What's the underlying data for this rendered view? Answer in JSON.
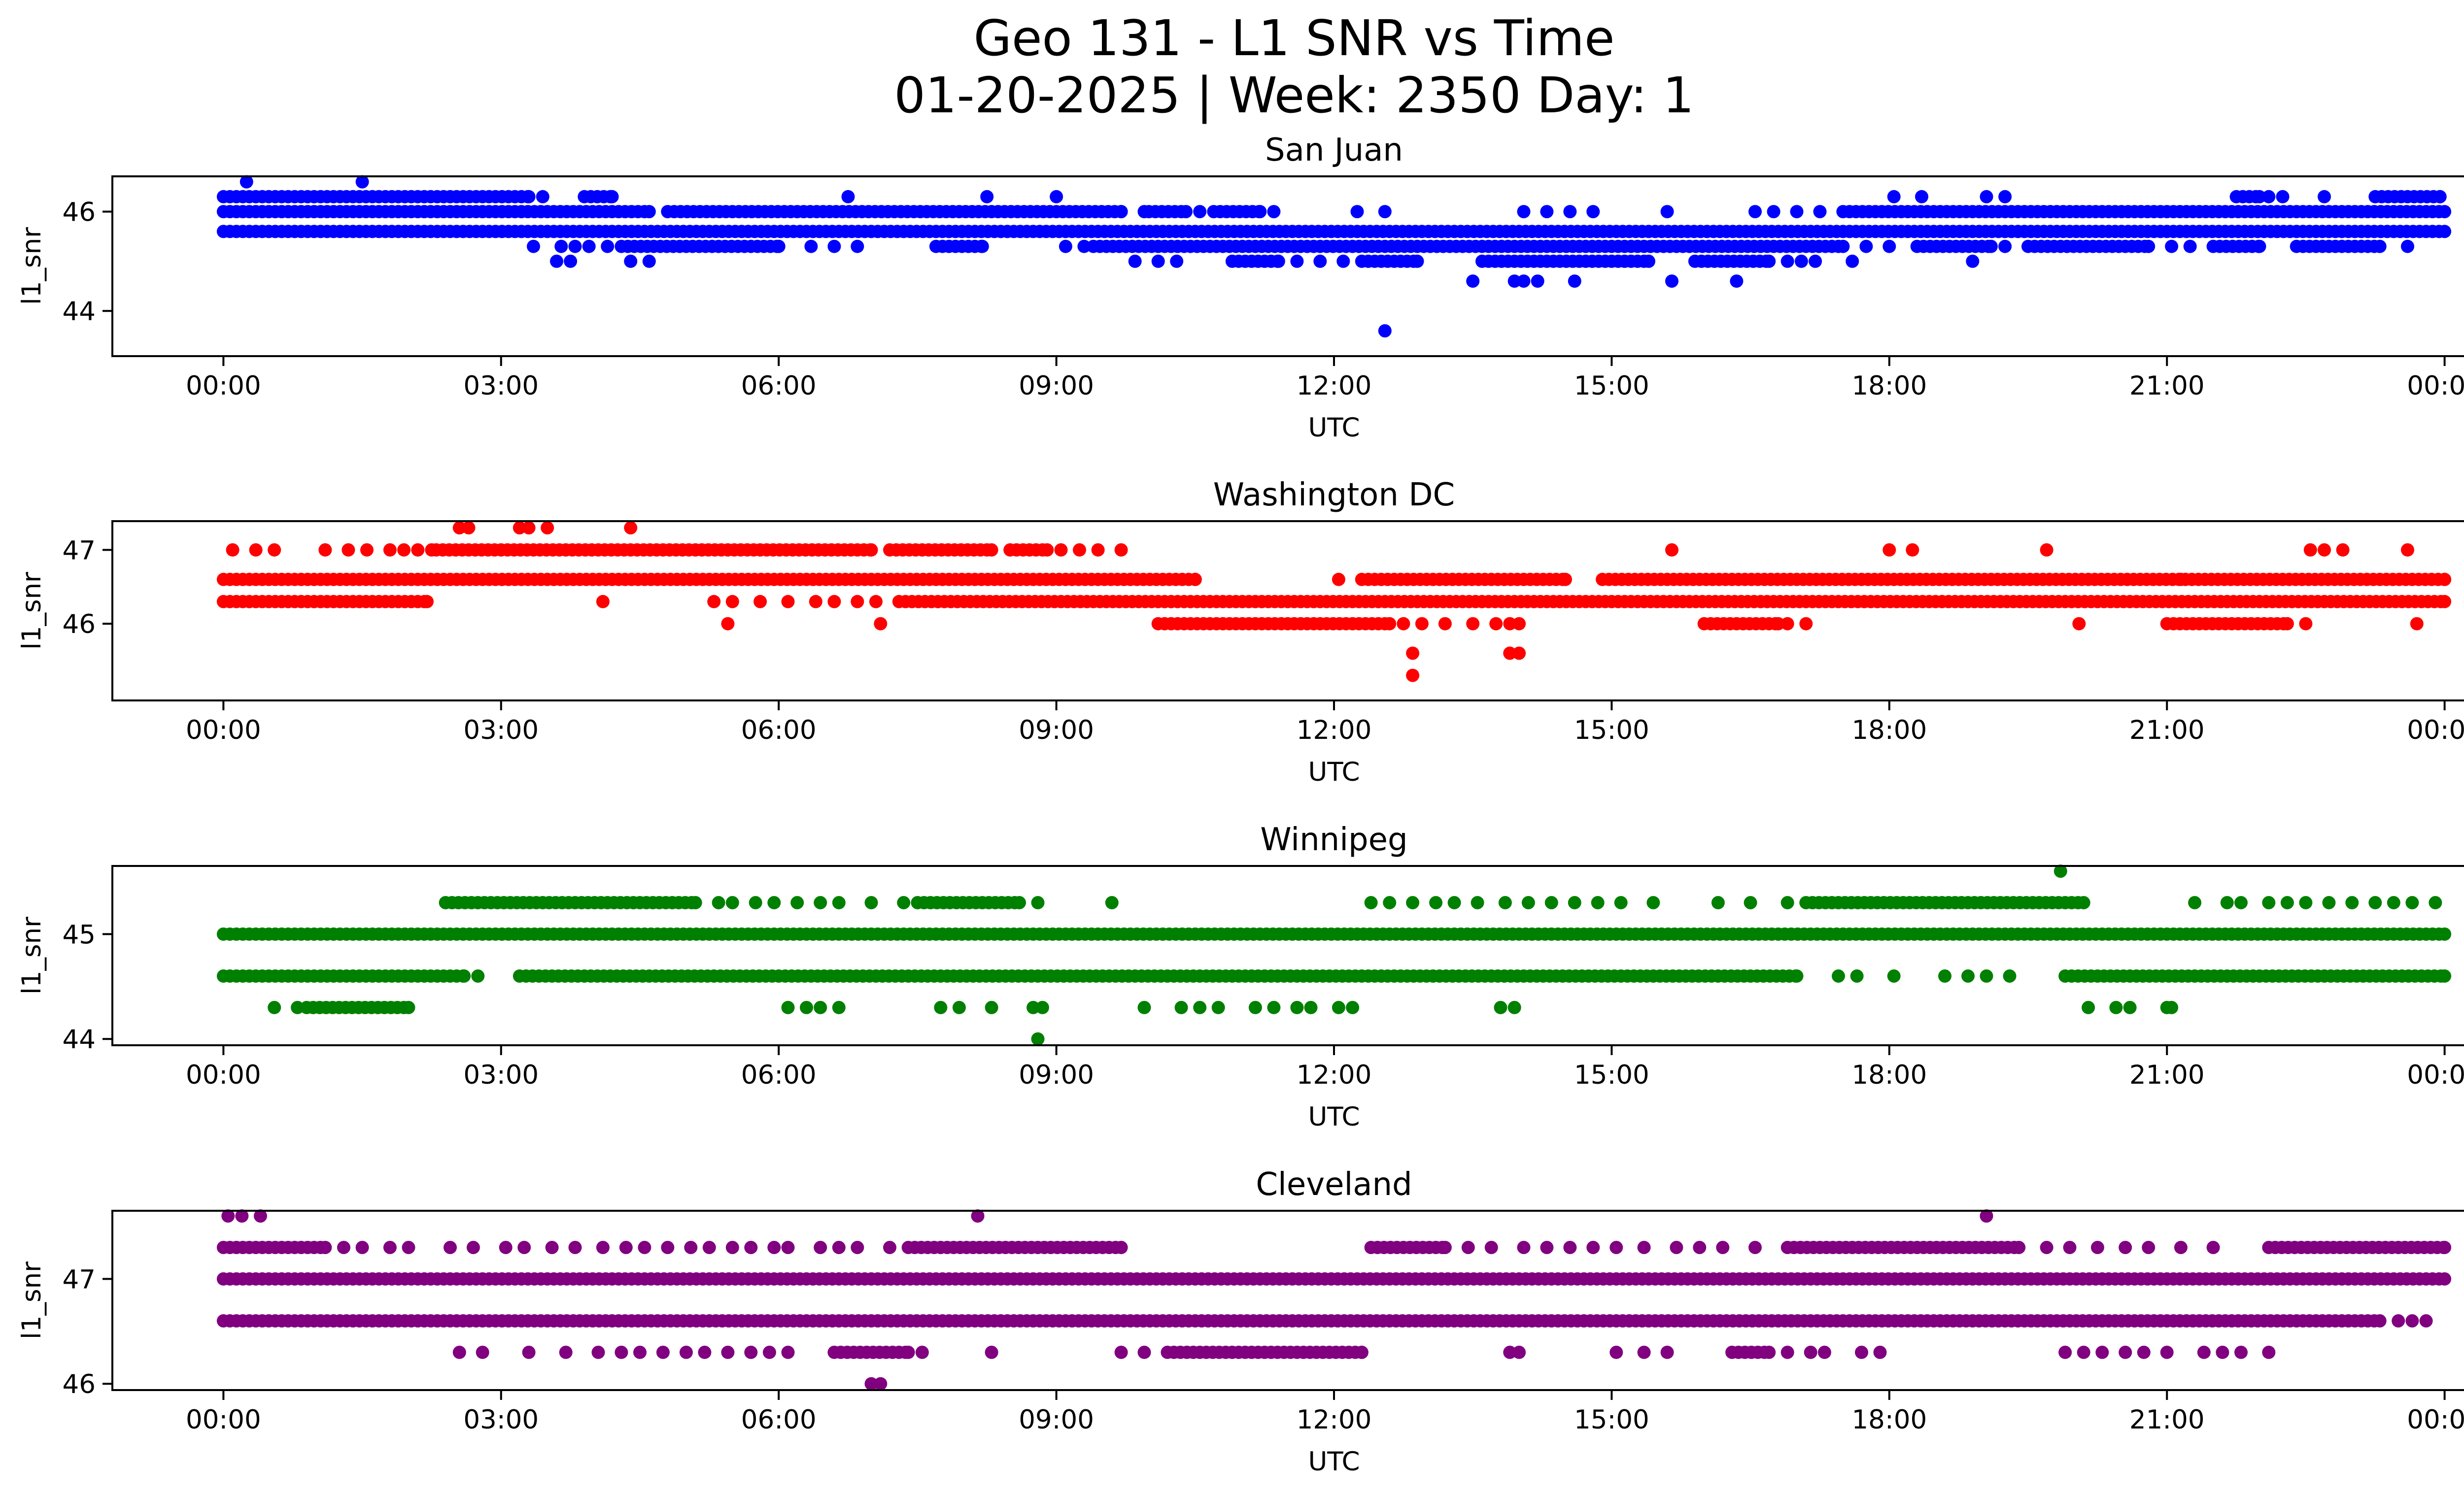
{
  "figure": {
    "title_line1": "Geo 131 - L1 SNR vs Time",
    "title_line2": "01-20-2025 | Week: 2350 Day: 1"
  },
  "chart_data": [
    {
      "type": "scatter",
      "title": "San Juan",
      "xlabel": "UTC",
      "ylabel": "l1_snr",
      "color": "#0000ff",
      "xlim_hours": [
        -1.2,
        25.2
      ],
      "ylim": [
        43.09,
        46.71
      ],
      "xticks": [
        "00:00",
        "03:00",
        "06:00",
        "09:00",
        "12:00",
        "15:00",
        "18:00",
        "21:00",
        "00:00"
      ],
      "yticks": [
        {
          "value": 44,
          "label": "44"
        },
        {
          "value": 46,
          "label": "46"
        }
      ],
      "grid": false,
      "levels": [
        {
          "snr": 46.6,
          "segments": [],
          "points": [
            0.25,
            1.5
          ]
        },
        {
          "snr": 46.3,
          "segments": [
            [
              0.0,
              3.3
            ],
            [
              3.9,
              4.2
            ],
            [
              21.75,
              22.0
            ],
            [
              23.25,
              23.95
            ]
          ],
          "points": [
            3.45,
            6.75,
            8.25,
            9.0,
            18.05,
            18.35,
            19.05,
            19.25,
            22.1,
            22.25,
            22.7
          ]
        },
        {
          "snr": 46.0,
          "segments": [
            [
              0.0,
              4.6
            ],
            [
              4.8,
              9.7
            ],
            [
              10.0,
              10.4
            ],
            [
              10.7,
              11.2
            ],
            [
              17.5,
              24.0
            ]
          ],
          "points": [
            9.95,
            10.55,
            11.35,
            12.25,
            12.55,
            14.05,
            14.3,
            14.55,
            14.8,
            15.6,
            16.55,
            16.75,
            17.0,
            17.25
          ]
        },
        {
          "snr": 45.6,
          "segments": [
            [
              0.0,
              24.0
            ]
          ],
          "points": []
        },
        {
          "snr": 45.3,
          "segments": [
            [
              4.3,
              6.0
            ],
            [
              7.7,
              8.2
            ],
            [
              9.4,
              17.5
            ],
            [
              18.3,
              19.1
            ],
            [
              19.5,
              20.8
            ],
            [
              21.5,
              22.0
            ],
            [
              22.4,
              23.3
            ]
          ],
          "points": [
            3.35,
            3.65,
            3.8,
            3.95,
            4.15,
            6.35,
            6.6,
            6.85,
            9.1,
            9.3,
            17.75,
            18.0,
            19.25,
            21.05,
            21.25,
            23.6
          ]
        },
        {
          "snr": 45.0,
          "segments": [
            [
              10.9,
              11.4
            ],
            [
              12.3,
              12.9
            ],
            [
              13.6,
              15.4
            ],
            [
              15.9,
              16.7
            ]
          ],
          "points": [
            3.6,
            3.75,
            4.4,
            4.6,
            9.85,
            10.1,
            10.3,
            11.6,
            11.85,
            12.1,
            16.9,
            17.05,
            17.2,
            17.6,
            18.9
          ]
        },
        {
          "snr": 44.6,
          "segments": [],
          "points": [
            13.5,
            13.95,
            14.05,
            14.2,
            14.6,
            15.65,
            16.35
          ]
        },
        {
          "snr": 43.6,
          "segments": [],
          "points": [
            12.55
          ]
        }
      ]
    },
    {
      "type": "scatter",
      "title": "Washington DC",
      "xlabel": "UTC",
      "ylabel": "l1_snr",
      "color": "#ff0000",
      "xlim_hours": [
        -1.2,
        25.2
      ],
      "ylim": [
        44.96,
        47.39
      ],
      "xticks": [
        "00:00",
        "03:00",
        "06:00",
        "09:00",
        "12:00",
        "15:00",
        "18:00",
        "21:00",
        "00:00"
      ],
      "yticks": [
        {
          "value": 46,
          "label": "46"
        },
        {
          "value": 47,
          "label": "47"
        }
      ],
      "grid": false,
      "levels": [
        {
          "snr": 47.3,
          "segments": [],
          "points": [
            2.55,
            2.65,
            3.2,
            3.3,
            3.5,
            4.4
          ]
        },
        {
          "snr": 47.0,
          "segments": [
            [
              2.3,
              7.0
            ],
            [
              7.2,
              8.3
            ],
            [
              8.5,
              8.9
            ]
          ],
          "points": [
            0.1,
            0.35,
            0.55,
            1.1,
            1.35,
            1.55,
            1.8,
            1.95,
            2.1,
            2.25,
            9.05,
            9.25,
            9.45,
            9.7,
            15.65,
            18.0,
            18.25,
            19.7,
            22.55,
            22.7,
            22.9,
            23.6
          ]
        },
        {
          "snr": 46.6,
          "segments": [
            [
              0.0,
              10.5
            ],
            [
              12.3,
              14.5
            ],
            [
              14.9,
              24.0
            ]
          ],
          "points": [
            12.05,
            21.15
          ]
        },
        {
          "snr": 46.3,
          "segments": [
            [
              0.0,
              2.2
            ],
            [
              7.3,
              24.0
            ]
          ],
          "points": [
            4.1,
            5.3,
            5.5,
            5.8,
            6.1,
            6.4,
            6.6,
            6.85,
            7.05
          ]
        },
        {
          "snr": 46.0,
          "segments": [
            [
              10.1,
              12.6
            ],
            [
              16.0,
              16.8
            ],
            [
              21.0,
              22.3
            ]
          ],
          "points": [
            5.45,
            7.1,
            12.75,
            12.95,
            13.2,
            13.5,
            13.75,
            13.9,
            14.0,
            16.9,
            17.1,
            20.05,
            22.5,
            23.7
          ]
        },
        {
          "snr": 45.6,
          "segments": [],
          "points": [
            12.85,
            13.9,
            14.0
          ]
        },
        {
          "snr": 45.3,
          "segments": [],
          "points": [
            12.85
          ]
        }
      ]
    },
    {
      "type": "scatter",
      "title": "Winnipeg",
      "xlabel": "UTC",
      "ylabel": "l1_snr",
      "color": "#008000",
      "xlim_hours": [
        -1.2,
        25.2
      ],
      "ylim": [
        43.94,
        45.65
      ],
      "xticks": [
        "00:00",
        "03:00",
        "06:00",
        "09:00",
        "12:00",
        "15:00",
        "18:00",
        "21:00",
        "00:00"
      ],
      "yticks": [
        {
          "value": 44,
          "label": "44"
        },
        {
          "value": 45,
          "label": "45"
        }
      ],
      "grid": false,
      "levels": [
        {
          "snr": 45.6,
          "segments": [],
          "points": [
            19.85
          ]
        },
        {
          "snr": 45.3,
          "segments": [
            [
              2.4,
              5.1
            ],
            [
              7.5,
              8.6
            ],
            [
              17.1,
              20.1
            ]
          ],
          "points": [
            5.35,
            5.5,
            5.75,
            5.95,
            6.2,
            6.45,
            6.65,
            7.0,
            7.35,
            8.8,
            9.6,
            12.4,
            12.6,
            12.85,
            13.1,
            13.3,
            13.55,
            13.85,
            14.1,
            14.35,
            14.6,
            14.85,
            15.1,
            15.45,
            16.15,
            16.5,
            16.9,
            21.3,
            21.65,
            21.8,
            22.1,
            22.3,
            22.5,
            22.75,
            23.0,
            23.25,
            23.45,
            23.65,
            23.9
          ]
        },
        {
          "snr": 45.0,
          "segments": [
            [
              0.0,
              24.0
            ]
          ],
          "points": []
        },
        {
          "snr": 44.6,
          "segments": [
            [
              0.0,
              2.6
            ],
            [
              3.2,
              17.0
            ],
            [
              19.9,
              24.0
            ]
          ],
          "points": [
            2.75,
            17.45,
            17.65,
            18.05,
            18.6,
            18.85,
            19.05,
            19.3
          ]
        },
        {
          "snr": 44.3,
          "segments": [
            [
              0.9,
              2.0
            ]
          ],
          "points": [
            0.55,
            0.8,
            6.1,
            6.3,
            6.45,
            6.65,
            7.75,
            7.95,
            8.3,
            8.75,
            8.85,
            9.95,
            10.35,
            10.55,
            10.75,
            11.15,
            11.35,
            11.6,
            11.75,
            12.05,
            12.2,
            13.8,
            13.95,
            20.15,
            20.45,
            20.6,
            21.0,
            21.05
          ]
        },
        {
          "snr": 44.0,
          "segments": [],
          "points": [
            8.8
          ]
        }
      ]
    },
    {
      "type": "scatter",
      "title": "Cleveland",
      "xlabel": "UTC",
      "ylabel": "l1_snr",
      "color": "#800080",
      "xlim_hours": [
        -1.2,
        25.2
      ],
      "ylim": [
        45.94,
        47.65
      ],
      "xticks": [
        "00:00",
        "03:00",
        "06:00",
        "09:00",
        "12:00",
        "15:00",
        "18:00",
        "21:00",
        "00:00"
      ],
      "yticks": [
        {
          "value": 46,
          "label": "46"
        },
        {
          "value": 47,
          "label": "47"
        }
      ],
      "grid": false,
      "levels": [
        {
          "snr": 47.6,
          "segments": [],
          "points": [
            0.05,
            0.2,
            0.4,
            8.15,
            19.05
          ]
        },
        {
          "snr": 47.3,
          "segments": [
            [
              0.0,
              1.1
            ],
            [
              7.4,
              9.7
            ],
            [
              12.4,
              13.2
            ],
            [
              16.9,
              19.4
            ],
            [
              22.1,
              24.0
            ]
          ],
          "points": [
            1.3,
            1.5,
            1.8,
            2.0,
            2.45,
            2.7,
            3.05,
            3.25,
            3.55,
            3.8,
            4.1,
            4.35,
            4.55,
            4.8,
            5.05,
            5.25,
            5.5,
            5.7,
            5.95,
            6.1,
            6.45,
            6.65,
            6.85,
            7.2,
            13.45,
            13.7,
            14.05,
            14.3,
            14.55,
            14.8,
            15.05,
            15.35,
            15.7,
            15.95,
            16.2,
            16.55,
            19.7,
            19.95,
            20.25,
            20.55,
            20.8,
            21.15,
            21.5
          ]
        },
        {
          "snr": 47.0,
          "segments": [
            [
              0.0,
              24.0
            ]
          ],
          "points": []
        },
        {
          "snr": 46.6,
          "segments": [
            [
              0.0,
              23.3
            ]
          ],
          "points": [
            23.5,
            23.65,
            23.8
          ]
        },
        {
          "snr": 46.3,
          "segments": [
            [
              6.6,
              7.4
            ],
            [
              10.2,
              12.3
            ],
            [
              16.3,
              16.7
            ]
          ],
          "points": [
            2.55,
            2.8,
            3.3,
            3.7,
            4.05,
            4.3,
            4.5,
            4.75,
            5.0,
            5.2,
            5.45,
            5.7,
            5.9,
            6.1,
            7.55,
            8.3,
            9.7,
            9.95,
            13.9,
            14.0,
            15.05,
            15.35,
            15.6,
            16.9,
            17.15,
            17.3,
            17.7,
            17.9,
            19.9,
            20.1,
            20.3,
            20.55,
            20.75,
            21.0,
            21.4,
            21.6,
            21.8,
            22.1
          ]
        },
        {
          "snr": 46.0,
          "segments": [],
          "points": [
            7.0,
            7.1
          ]
        }
      ]
    }
  ]
}
